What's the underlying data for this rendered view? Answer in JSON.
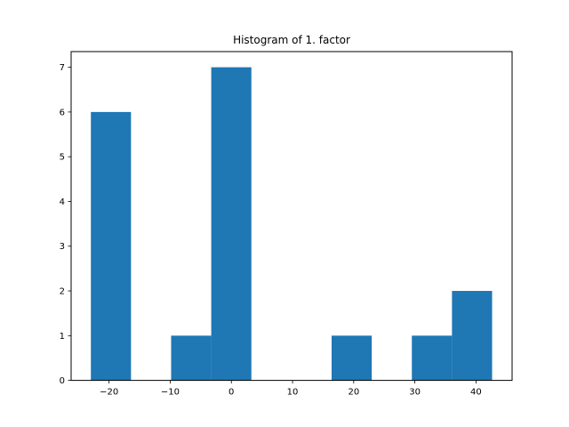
{
  "chart_data": {
    "type": "bar",
    "title": "Histogram of 1. factor",
    "xlabel": "",
    "ylabel": "",
    "bin_edges": [
      -22.97,
      -16.41,
      -9.85,
      -3.29,
      3.27,
      9.83,
      16.39,
      22.95,
      29.51,
      36.07,
      42.63
    ],
    "values": [
      6,
      0,
      1,
      7,
      0,
      0,
      1,
      0,
      1,
      2
    ],
    "xlim": [
      -26.2,
      45.9
    ],
    "ylim": [
      0,
      7.35
    ],
    "xticks": [
      -20,
      -10,
      0,
      10,
      20,
      30,
      40
    ],
    "xtick_labels": [
      "−20",
      "−10",
      "0",
      "10",
      "20",
      "30",
      "40"
    ],
    "yticks": [
      0,
      1,
      2,
      3,
      4,
      5,
      6,
      7
    ],
    "ytick_labels": [
      "0",
      "1",
      "2",
      "3",
      "4",
      "5",
      "6",
      "7"
    ],
    "bar_color": "#1f77b4",
    "grid": false,
    "legend": "none"
  }
}
